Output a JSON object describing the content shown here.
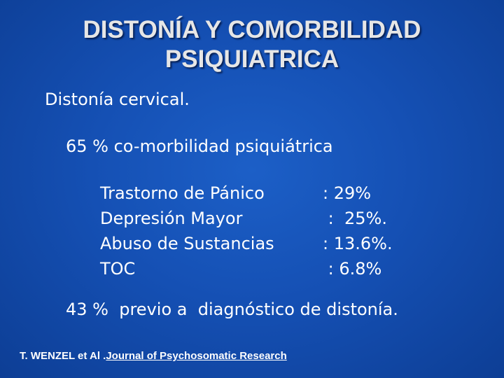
{
  "slide": {
    "title_line1": "DISTONÍA Y COMORBILIDAD",
    "title_line2": "PSIQUIATRICA",
    "subtitle": "Distonía cervical.",
    "comorbidity_line": "65 % co-morbilidad psiquiátrica",
    "disorders": [
      {
        "name": "Trastorno de Pánico",
        "value": ": 29%"
      },
      {
        "name": "Depresión Mayor",
        "value": " :  25%."
      },
      {
        "name": "Abuso de Sustancias",
        "value": ": 13.6%."
      },
      {
        "name": "TOC",
        "value": " : 6.8%"
      }
    ],
    "prior_line": "43 %  previo a  diagnóstico de distonía.",
    "citation_authors": "T. WENZEL et Al .",
    "citation_journal": "Journal of Psychosomatic Research"
  },
  "colors": {
    "background": "#1550b4",
    "title": "#e6e6e6",
    "text": "#ffffff"
  }
}
